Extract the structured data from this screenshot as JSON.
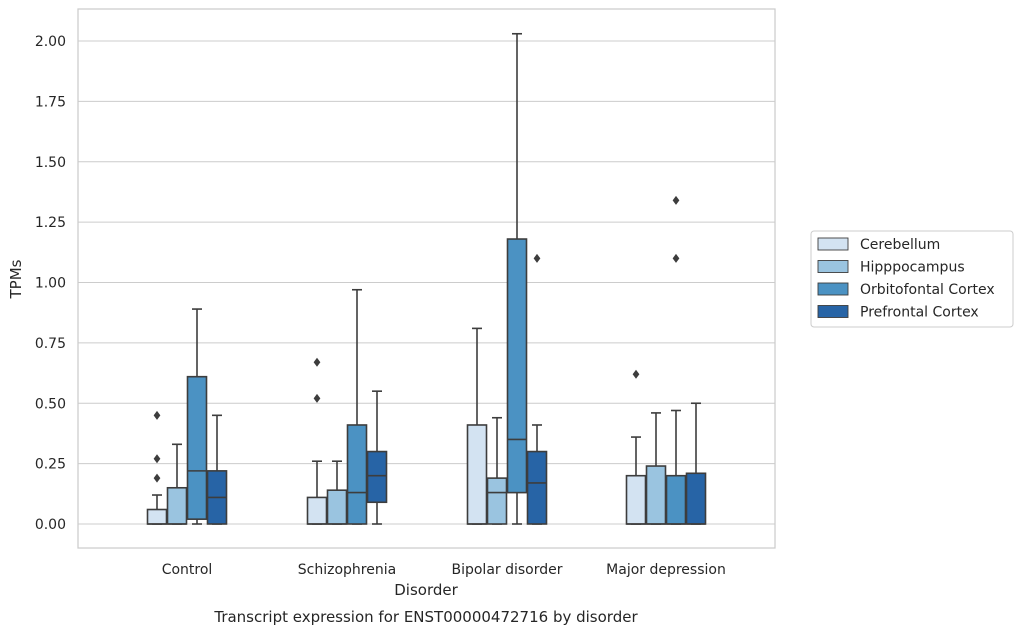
{
  "chart_data": {
    "type": "box",
    "title": "",
    "caption": "Transcript expression for ENST00000472716 by disorder",
    "xlabel": "Disorder",
    "ylabel": "TPMs",
    "ylim": [
      -0.1,
      2.13
    ],
    "yticks": [
      "0.00",
      "0.25",
      "0.50",
      "0.75",
      "1.00",
      "1.25",
      "1.50",
      "1.75",
      "2.00"
    ],
    "grid": true,
    "legend_position": "right",
    "categories": [
      "Control",
      "Schizophrenia",
      "Bipolar disorder",
      "Major depression"
    ],
    "series": [
      {
        "name": "Cerebellum",
        "color": "#d3e3f2",
        "boxes": [
          {
            "q1": 0.0,
            "median": 0.0,
            "q3": 0.06,
            "whisker_low": 0.0,
            "whisker_high": 0.12,
            "outliers": [
              0.19,
              0.27,
              0.45
            ]
          },
          {
            "q1": 0.0,
            "median": 0.0,
            "q3": 0.11,
            "whisker_low": 0.0,
            "whisker_high": 0.26,
            "outliers": [
              0.52,
              0.67
            ]
          },
          {
            "q1": 0.0,
            "median": 0.0,
            "q3": 0.41,
            "whisker_low": 0.0,
            "whisker_high": 0.81,
            "outliers": []
          },
          {
            "q1": 0.0,
            "median": 0.0,
            "q3": 0.2,
            "whisker_low": 0.0,
            "whisker_high": 0.36,
            "outliers": [
              0.62
            ]
          }
        ]
      },
      {
        "name": "Hipppocampus",
        "color": "#9ac4e0",
        "boxes": [
          {
            "q1": 0.0,
            "median": 0.0,
            "q3": 0.15,
            "whisker_low": 0.0,
            "whisker_high": 0.33,
            "outliers": []
          },
          {
            "q1": 0.0,
            "median": 0.0,
            "q3": 0.14,
            "whisker_low": 0.0,
            "whisker_high": 0.26,
            "outliers": []
          },
          {
            "q1": 0.0,
            "median": 0.13,
            "q3": 0.19,
            "whisker_low": 0.0,
            "whisker_high": 0.44,
            "outliers": []
          },
          {
            "q1": 0.0,
            "median": 0.0,
            "q3": 0.24,
            "whisker_low": 0.0,
            "whisker_high": 0.46,
            "outliers": []
          }
        ]
      },
      {
        "name": "Orbitofontal Cortex",
        "color": "#4b92c3",
        "boxes": [
          {
            "q1": 0.02,
            "median": 0.22,
            "q3": 0.61,
            "whisker_low": 0.0,
            "whisker_high": 0.89,
            "outliers": []
          },
          {
            "q1": 0.0,
            "median": 0.13,
            "q3": 0.41,
            "whisker_low": 0.0,
            "whisker_high": 0.97,
            "outliers": []
          },
          {
            "q1": 0.13,
            "median": 0.35,
            "q3": 1.18,
            "whisker_low": 0.0,
            "whisker_high": 2.03,
            "outliers": []
          },
          {
            "q1": 0.0,
            "median": 0.0,
            "q3": 0.2,
            "whisker_low": 0.0,
            "whisker_high": 0.47,
            "outliers": [
              1.1,
              1.34
            ]
          }
        ]
      },
      {
        "name": "Prefrontal Cortex",
        "color": "#2764a6",
        "boxes": [
          {
            "q1": 0.0,
            "median": 0.11,
            "q3": 0.22,
            "whisker_low": 0.0,
            "whisker_high": 0.45,
            "outliers": []
          },
          {
            "q1": 0.09,
            "median": 0.2,
            "q3": 0.3,
            "whisker_low": 0.0,
            "whisker_high": 0.55,
            "outliers": []
          },
          {
            "q1": 0.0,
            "median": 0.17,
            "q3": 0.3,
            "whisker_low": 0.0,
            "whisker_high": 0.41,
            "outliers": [
              1.1
            ]
          },
          {
            "q1": 0.0,
            "median": 0.0,
            "q3": 0.21,
            "whisker_low": 0.0,
            "whisker_high": 0.5,
            "outliers": []
          }
        ]
      }
    ]
  }
}
